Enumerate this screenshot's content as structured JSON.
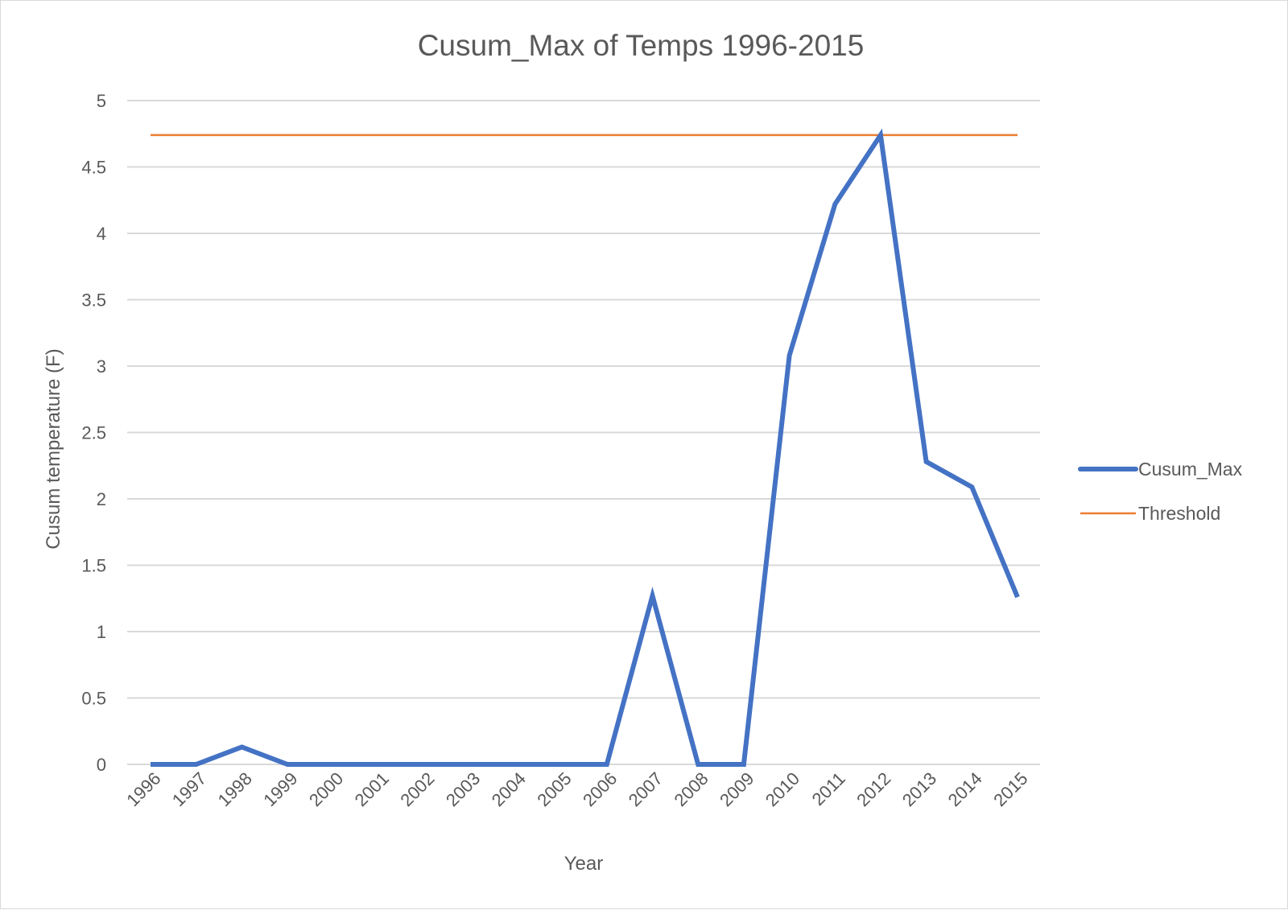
{
  "colors": {
    "cusum_max": "#4472c4",
    "threshold": "#ed7d31",
    "grid": "#d9d9d9",
    "text": "#595959"
  },
  "chart_data": {
    "type": "line",
    "title": "Cusum_Max of Temps 1996-2015",
    "xlabel": "Year",
    "ylabel": "Cusum temperature (F)",
    "ylim": [
      0,
      5
    ],
    "yticks": [
      "0",
      "0.5",
      "1",
      "1.5",
      "2",
      "2.5",
      "3",
      "3.5",
      "4",
      "4.5",
      "5"
    ],
    "grid": "horizontal",
    "legend_position": "right",
    "categories": [
      "1996",
      "1997",
      "1998",
      "1999",
      "2000",
      "2001",
      "2002",
      "2003",
      "2004",
      "2005",
      "2006",
      "2007",
      "2008",
      "2009",
      "2010",
      "2011",
      "2012",
      "2013",
      "2014",
      "2015"
    ],
    "series": [
      {
        "name": "Cusum_Max",
        "values": [
          0,
          0,
          0.13,
          0,
          0,
          0,
          0,
          0,
          0,
          0,
          0,
          1.27,
          0,
          0,
          3.08,
          4.22,
          4.74,
          2.28,
          2.09,
          1.26
        ]
      },
      {
        "name": "Threshold",
        "values": [
          4.74,
          4.74,
          4.74,
          4.74,
          4.74,
          4.74,
          4.74,
          4.74,
          4.74,
          4.74,
          4.74,
          4.74,
          4.74,
          4.74,
          4.74,
          4.74,
          4.74,
          4.74,
          4.74,
          4.74
        ]
      }
    ]
  }
}
